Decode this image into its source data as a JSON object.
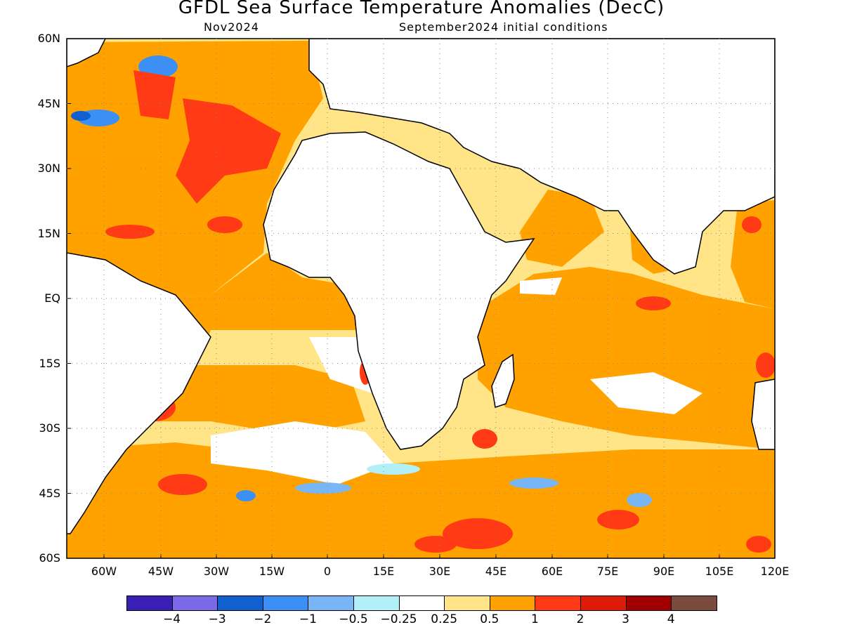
{
  "title": "GFDL Sea Surface Temperature Anomalies (DecC)",
  "subtitle_left": "Nov2024",
  "subtitle_right": "September2024 initial conditions",
  "lat_labels": [
    "60N",
    "45N",
    "30N",
    "15N",
    "EQ",
    "15S",
    "30S",
    "45S",
    "60S"
  ],
  "lon_labels": [
    "60W",
    "45W",
    "30W",
    "15W",
    "0",
    "15E",
    "30E",
    "45E",
    "60E",
    "75E",
    "90E",
    "105E",
    "120E"
  ],
  "colorbar": {
    "colors": [
      "#3a1fb5",
      "#7c69e8",
      "#1060d0",
      "#3b8ff5",
      "#78b6f5",
      "#b2f0f8",
      "#ffffff",
      "#ffe488",
      "#ffa200",
      "#ff3a14",
      "#de1a08",
      "#a10000",
      "#7a4c3e"
    ],
    "labels": [
      "−4",
      "−3",
      "−2",
      "−1",
      "−0.5",
      "−0.25",
      "0.25",
      "0.5",
      "1",
      "2",
      "3",
      "4"
    ]
  }
}
